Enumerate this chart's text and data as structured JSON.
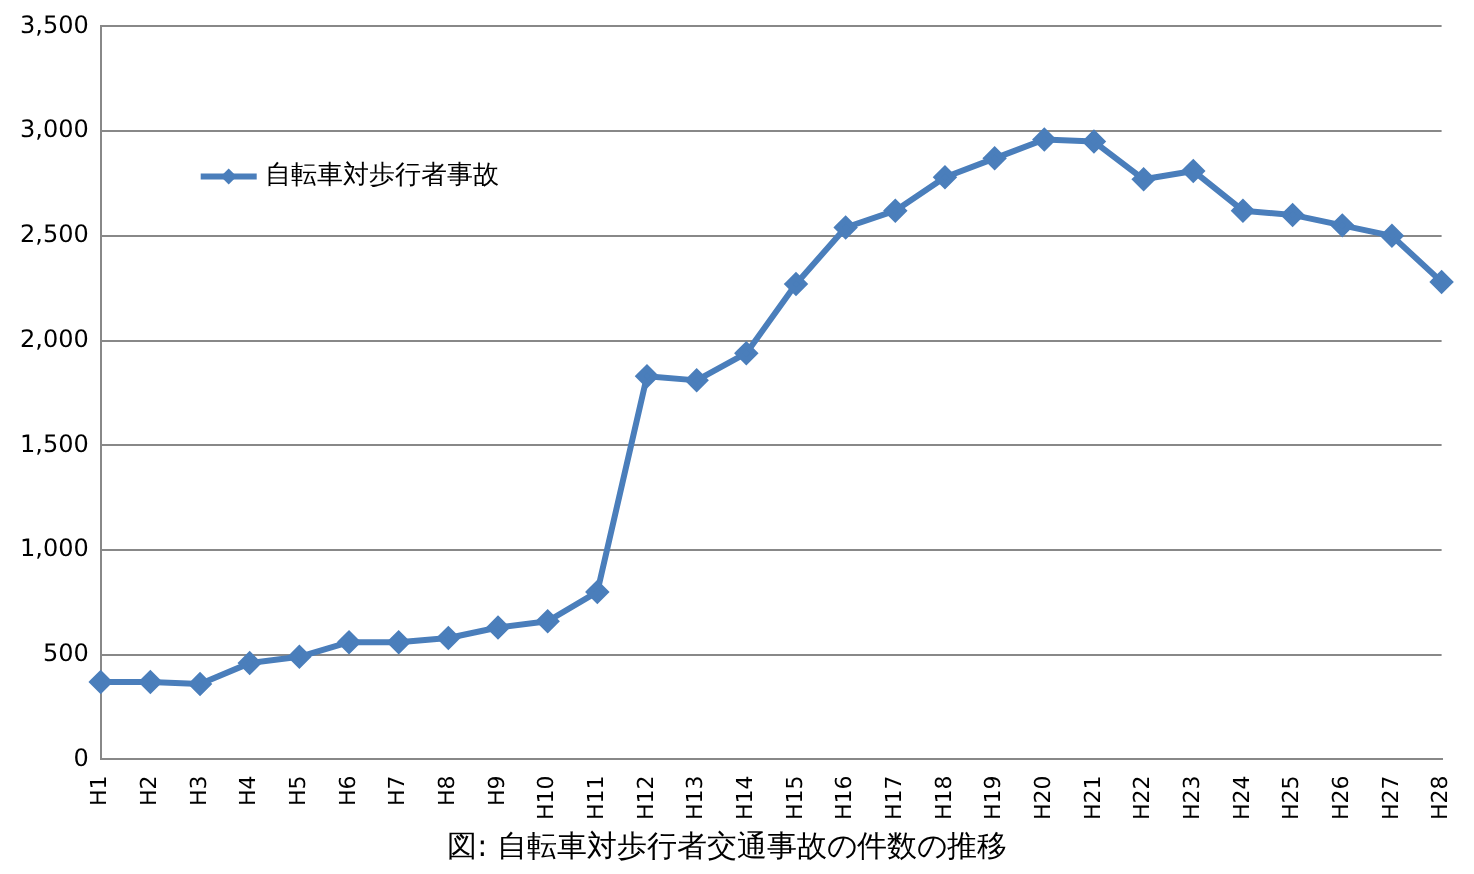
{
  "chart_data": {
    "type": "line",
    "title": "図: 自転車対歩行者交通事故の件数の推移",
    "categories": [
      "H1",
      "H2",
      "H3",
      "H4",
      "H5",
      "H6",
      "H7",
      "H8",
      "H9",
      "H10",
      "H11",
      "H12",
      "H13",
      "H14",
      "H15",
      "H16",
      "H17",
      "H18",
      "H19",
      "H20",
      "H21",
      "H22",
      "H23",
      "H24",
      "H25",
      "H26",
      "H27",
      "H28"
    ],
    "series": [
      {
        "name": "自転車対歩行者事故",
        "color": "#4a7ebb",
        "values": [
          370,
          370,
          360,
          460,
          490,
          560,
          560,
          580,
          630,
          660,
          800,
          1830,
          1810,
          1940,
          2270,
          2540,
          2620,
          2780,
          2870,
          2960,
          2950,
          2770,
          2810,
          2620,
          2600,
          2550,
          2500,
          2280
        ]
      }
    ],
    "ylim": [
      0,
      3500
    ],
    "yticks": [
      0,
      500,
      {
        "value": 1000,
        "label": "1,000"
      },
      {
        "value": 1500,
        "label": "1,500"
      },
      {
        "value": 2000,
        "label": "2,000"
      },
      {
        "value": 2500,
        "label": "2,500"
      },
      {
        "value": 3000,
        "label": "3,000"
      },
      {
        "value": 3500,
        "label": "3,500"
      }
    ],
    "grid": "y",
    "legend": "top left",
    "marker": "diamond",
    "line_style": "solid"
  }
}
